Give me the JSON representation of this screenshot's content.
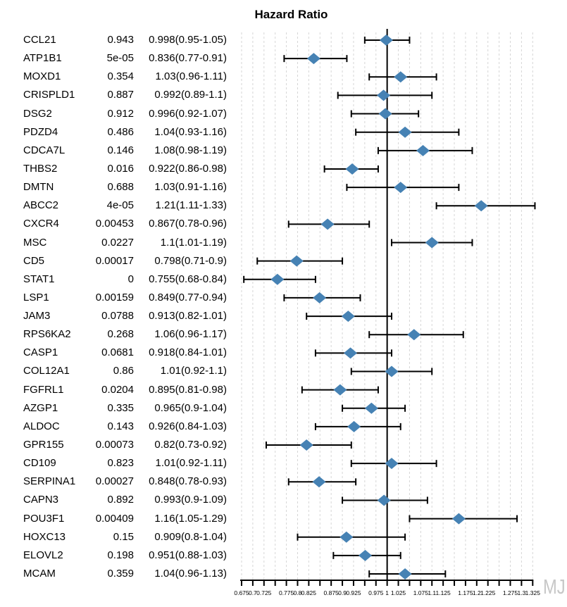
{
  "title": "Hazard Ratio",
  "watermark": "MJ",
  "colors": {
    "diamond": "#4682b4",
    "line": "#000000",
    "grid": "#d6d6d6",
    "text": "#000000",
    "watermark": "#c7c7c7"
  },
  "chart_data": {
    "type": "forest",
    "title": "Hazard Ratio",
    "columns": [
      "gene",
      "pvalue",
      "hr_ci"
    ],
    "legend_position": "none",
    "grid": true,
    "rows": [
      {
        "gene": "CCL21",
        "pvalue": "0.943",
        "hr_ci": "0.998(0.95-1.05)",
        "hr": 0.998,
        "lo": 0.95,
        "hi": 1.05
      },
      {
        "gene": "ATP1B1",
        "pvalue": "5e-05",
        "hr_ci": "0.836(0.77-0.91)",
        "hr": 0.836,
        "lo": 0.77,
        "hi": 0.91
      },
      {
        "gene": "MOXD1",
        "pvalue": "0.354",
        "hr_ci": "1.03(0.96-1.11)",
        "hr": 1.03,
        "lo": 0.96,
        "hi": 1.11
      },
      {
        "gene": "CRISPLD1",
        "pvalue": "0.887",
        "hr_ci": "0.992(0.89-1.1)",
        "hr": 0.992,
        "lo": 0.89,
        "hi": 1.1
      },
      {
        "gene": "DSG2",
        "pvalue": "0.912",
        "hr_ci": "0.996(0.92-1.07)",
        "hr": 0.996,
        "lo": 0.92,
        "hi": 1.07
      },
      {
        "gene": "PDZD4",
        "pvalue": "0.486",
        "hr_ci": "1.04(0.93-1.16)",
        "hr": 1.04,
        "lo": 0.93,
        "hi": 1.16
      },
      {
        "gene": "CDCA7L",
        "pvalue": "0.146",
        "hr_ci": "1.08(0.98-1.19)",
        "hr": 1.08,
        "lo": 0.98,
        "hi": 1.19
      },
      {
        "gene": "THBS2",
        "pvalue": "0.016",
        "hr_ci": "0.922(0.86-0.98)",
        "hr": 0.922,
        "lo": 0.86,
        "hi": 0.98
      },
      {
        "gene": "DMTN",
        "pvalue": "0.688",
        "hr_ci": "1.03(0.91-1.16)",
        "hr": 1.03,
        "lo": 0.91,
        "hi": 1.16
      },
      {
        "gene": "ABCC2",
        "pvalue": "4e-05",
        "hr_ci": "1.21(1.11-1.33)",
        "hr": 1.21,
        "lo": 1.11,
        "hi": 1.33
      },
      {
        "gene": "CXCR4",
        "pvalue": "0.00453",
        "hr_ci": "0.867(0.78-0.96)",
        "hr": 0.867,
        "lo": 0.78,
        "hi": 0.96
      },
      {
        "gene": "MSC",
        "pvalue": "0.0227",
        "hr_ci": "1.1(1.01-1.19)",
        "hr": 1.1,
        "lo": 1.01,
        "hi": 1.19
      },
      {
        "gene": "CD5",
        "pvalue": "0.00017",
        "hr_ci": "0.798(0.71-0.9)",
        "hr": 0.798,
        "lo": 0.71,
        "hi": 0.9
      },
      {
        "gene": "STAT1",
        "pvalue": "0",
        "hr_ci": "0.755(0.68-0.84)",
        "hr": 0.755,
        "lo": 0.68,
        "hi": 0.84
      },
      {
        "gene": "LSP1",
        "pvalue": "0.00159",
        "hr_ci": "0.849(0.77-0.94)",
        "hr": 0.849,
        "lo": 0.77,
        "hi": 0.94
      },
      {
        "gene": "JAM3",
        "pvalue": "0.0788",
        "hr_ci": "0.913(0.82-1.01)",
        "hr": 0.913,
        "lo": 0.82,
        "hi": 1.01
      },
      {
        "gene": "RPS6KA2",
        "pvalue": "0.268",
        "hr_ci": "1.06(0.96-1.17)",
        "hr": 1.06,
        "lo": 0.96,
        "hi": 1.17
      },
      {
        "gene": "CASP1",
        "pvalue": "0.0681",
        "hr_ci": "0.918(0.84-1.01)",
        "hr": 0.918,
        "lo": 0.84,
        "hi": 1.01
      },
      {
        "gene": "COL12A1",
        "pvalue": "0.86",
        "hr_ci": "1.01(0.92-1.1)",
        "hr": 1.01,
        "lo": 0.92,
        "hi": 1.1
      },
      {
        "gene": "FGFRL1",
        "pvalue": "0.0204",
        "hr_ci": "0.895(0.81-0.98)",
        "hr": 0.895,
        "lo": 0.81,
        "hi": 0.98
      },
      {
        "gene": "AZGP1",
        "pvalue": "0.335",
        "hr_ci": "0.965(0.9-1.04)",
        "hr": 0.965,
        "lo": 0.9,
        "hi": 1.04
      },
      {
        "gene": "ALDOC",
        "pvalue": "0.143",
        "hr_ci": "0.926(0.84-1.03)",
        "hr": 0.926,
        "lo": 0.84,
        "hi": 1.03
      },
      {
        "gene": "GPR155",
        "pvalue": "0.00073",
        "hr_ci": "0.82(0.73-0.92)",
        "hr": 0.82,
        "lo": 0.73,
        "hi": 0.92
      },
      {
        "gene": "CD109",
        "pvalue": "0.823",
        "hr_ci": "1.01(0.92-1.11)",
        "hr": 1.01,
        "lo": 0.92,
        "hi": 1.11
      },
      {
        "gene": "SERPINA1",
        "pvalue": "0.00027",
        "hr_ci": "0.848(0.78-0.93)",
        "hr": 0.848,
        "lo": 0.78,
        "hi": 0.93
      },
      {
        "gene": "CAPN3",
        "pvalue": "0.892",
        "hr_ci": "0.993(0.9-1.09)",
        "hr": 0.993,
        "lo": 0.9,
        "hi": 1.09
      },
      {
        "gene": "POU3F1",
        "pvalue": "0.00409",
        "hr_ci": "1.16(1.05-1.29)",
        "hr": 1.16,
        "lo": 1.05,
        "hi": 1.29
      },
      {
        "gene": "HOXC13",
        "pvalue": "0.15",
        "hr_ci": "0.909(0.8-1.04)",
        "hr": 0.909,
        "lo": 0.8,
        "hi": 1.04
      },
      {
        "gene": "ELOVL2",
        "pvalue": "0.198",
        "hr_ci": "0.951(0.88-1.03)",
        "hr": 0.951,
        "lo": 0.88,
        "hi": 1.03
      },
      {
        "gene": "MCAM",
        "pvalue": "0.359",
        "hr_ci": "1.04(0.96-1.13)",
        "hr": 1.04,
        "lo": 0.96,
        "hi": 1.13
      }
    ],
    "xaxis": {
      "min": 0.675,
      "max": 1.325,
      "tick_step": 0.025,
      "reference_line": 1,
      "ticks": [
        0.675,
        0.7,
        0.725,
        0.75,
        0.775,
        0.8,
        0.825,
        0.85,
        0.875,
        0.9,
        0.925,
        0.95,
        0.975,
        1,
        1.025,
        1.05,
        1.075,
        1.1,
        1.125,
        1.15,
        1.175,
        1.2,
        1.225,
        1.25,
        1.275,
        1.3,
        1.325
      ],
      "tick_labels": [
        "0.675",
        "0.7",
        "0.725",
        "",
        "0.775",
        "0.8",
        "0.825",
        "",
        "0.875",
        "0.9",
        "0.925",
        "",
        "0.975",
        "1",
        "1.025",
        "",
        "1.075",
        "1.1",
        "1.125",
        "",
        "1.175",
        "1.2",
        "1.225",
        "",
        "1.275",
        "1.3",
        "1.325"
      ]
    }
  }
}
